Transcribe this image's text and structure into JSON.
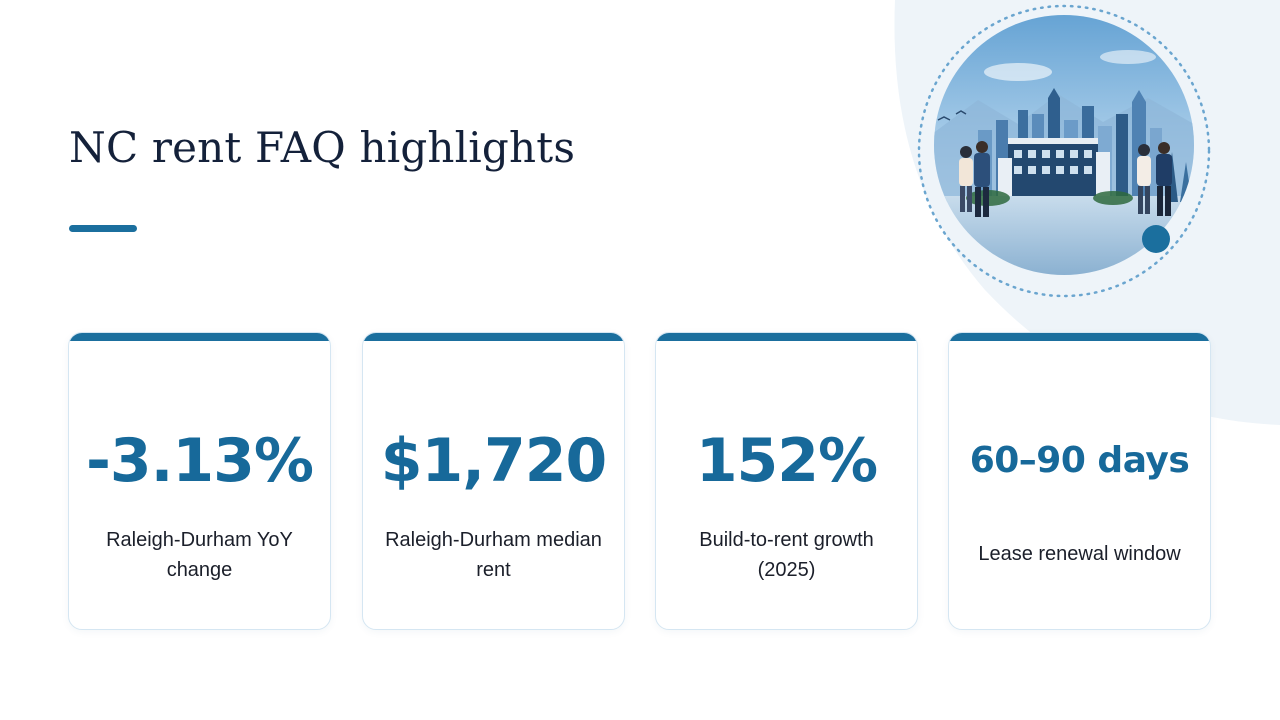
{
  "slide": {
    "title": "NC rent FAQ highlights",
    "accent_color": "#1b6f9e",
    "stat_color": "#17699a",
    "background_blob_color": "#eef4f9"
  },
  "hero_image": {
    "icon": "city-skyline-illustration-icon",
    "description_visible": false
  },
  "stats": [
    {
      "value": "-3.13%",
      "label": "Raleigh-Durham YoY change"
    },
    {
      "value": "$1,720",
      "label": "Raleigh-Durham median rent"
    },
    {
      "value": "152%",
      "label": "Build-to-rent growth (2025)"
    },
    {
      "value": "60–90 days",
      "label": "Lease renewal window"
    }
  ]
}
